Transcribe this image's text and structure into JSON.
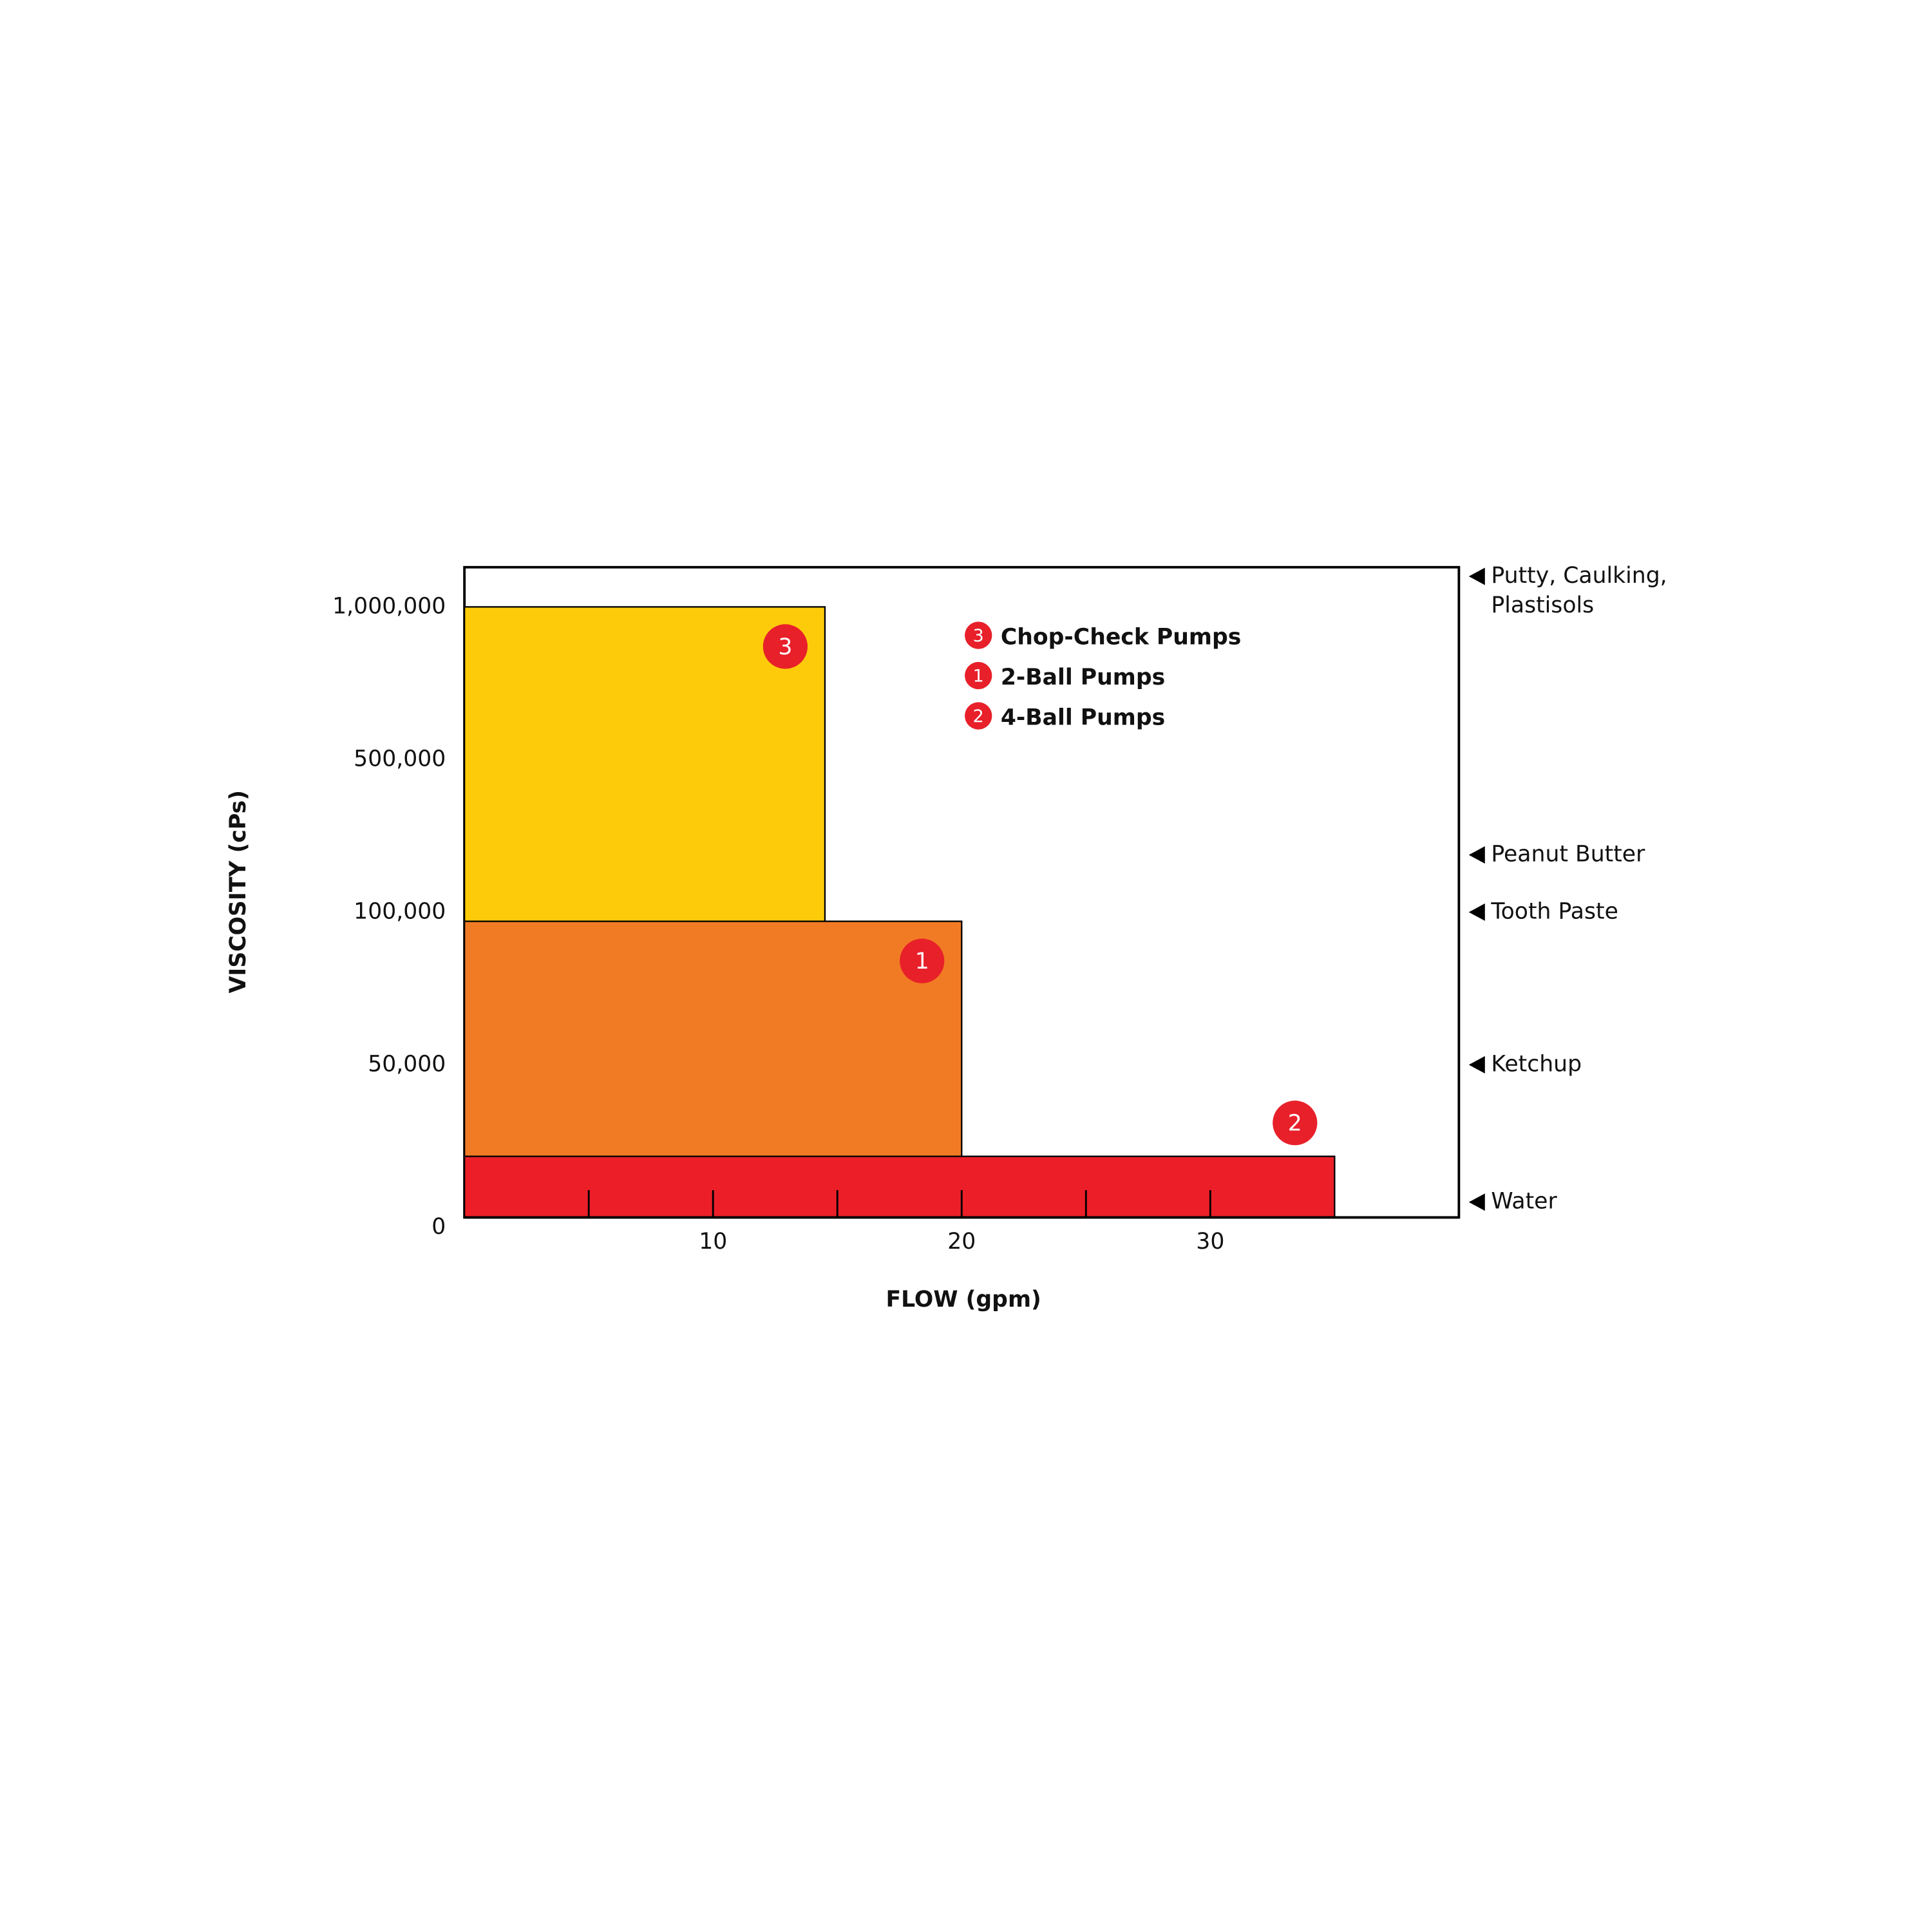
{
  "chart_data": {
    "type": "range-box",
    "x_label": "FLOW (gpm)",
    "y_label": "VISCOSITY (cPs)",
    "xlim": [
      0,
      40
    ],
    "xticks": [
      10,
      20,
      30
    ],
    "xminorticks": [
      5,
      15,
      25
    ],
    "ylim": [
      0,
      1130000
    ],
    "y_scale": "piecewise",
    "yticks": [
      0,
      {
        "value": 50000,
        "label": "50,000"
      },
      {
        "value": 100000,
        "label": "100,000"
      },
      {
        "value": 500000,
        "label": "500,000"
      },
      {
        "value": 1000000,
        "label": "1,000,000"
      }
    ],
    "series": [
      {
        "name": "Chop-Check Pumps",
        "badge": "3",
        "color": "#fdcb0a",
        "flow_max": 14.5,
        "viscosity_max": 1000000
      },
      {
        "name": "2-Ball Pumps",
        "badge": "1",
        "color": "#f17b24",
        "flow_max": 20,
        "viscosity_max": 97000
      },
      {
        "name": "4-Ball Pumps",
        "badge": "2",
        "color": "#ec1f28",
        "flow_max": 35,
        "viscosity_max": 20000
      }
    ],
    "badge_color": "#e8202a",
    "annotations": [
      {
        "label": [
          "Putty, Caulking,",
          "Plastisols"
        ],
        "value": 1100000
      },
      {
        "label": [
          "Peanut Butter"
        ],
        "value": 250000
      },
      {
        "label": [
          "Tooth Paste"
        ],
        "value": 100000
      },
      {
        "label": [
          "Ketchup"
        ],
        "value": 50000
      },
      {
        "label": [
          "Water"
        ],
        "value": 5000
      }
    ]
  }
}
